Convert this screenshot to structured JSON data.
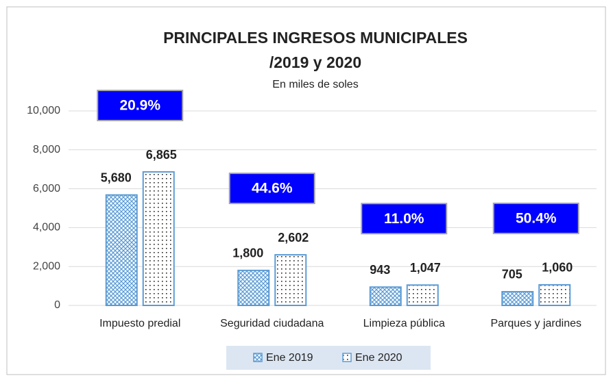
{
  "chart_data": {
    "type": "bar",
    "title_lines": [
      "PRINCIPALES INGRESOS MUNICIPALES",
      "/2019 y 2020"
    ],
    "subtitle": "En miles de soles",
    "categories": [
      "Impuesto predial",
      "Seguridad ciudadana",
      "Limpieza pública",
      "Parques y jardines"
    ],
    "series": [
      {
        "name": "Ene 2019",
        "color": "#5b9bd5",
        "pattern": "crosshatch",
        "values": [
          5680,
          1800,
          943,
          705
        ],
        "value_labels": [
          "5,680",
          "1,800",
          "943",
          "705"
        ]
      },
      {
        "name": "Ene 2020",
        "color": "#5b9bd5",
        "pattern": "dots",
        "values": [
          6865,
          2602,
          1047,
          1060
        ],
        "value_labels": [
          "6,865",
          "2,602",
          "1,047",
          "1,060"
        ]
      }
    ],
    "annotations": [
      "20.9%",
      "44.6%",
      "11.0%",
      "50.4%"
    ],
    "annotation_color": "#0000ff",
    "ylim": [
      0,
      10000
    ],
    "yticks": [
      0,
      {
        "value": 2000,
        "label": "2,000"
      },
      {
        "value": 4000,
        "label": "4,000"
      },
      {
        "value": 6000,
        "label": "6,000"
      },
      {
        "value": 8000,
        "label": "8,000"
      },
      {
        "value": 10000,
        "label": "10,000"
      }
    ],
    "grid": true,
    "legend": "bottom"
  }
}
